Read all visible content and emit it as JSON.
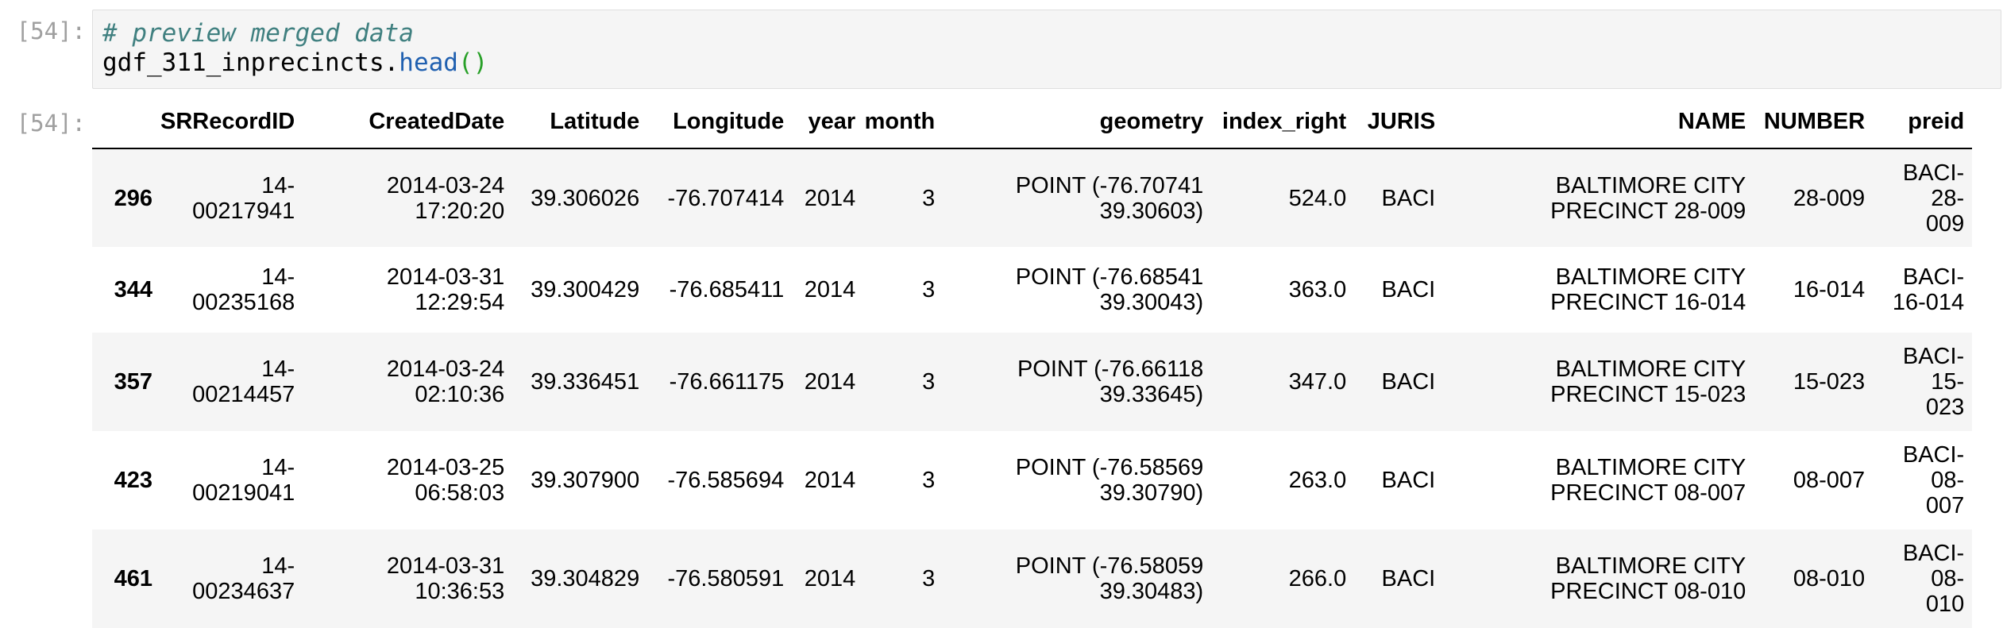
{
  "input_prompt": "[54]:",
  "output_prompt": "[54]:",
  "code": {
    "comment": "# preview merged data",
    "object": "gdf_311_inprecincts",
    "dot": ".",
    "method": "head",
    "parens": "()"
  },
  "table": {
    "columns": [
      "",
      "SRRecordID",
      "CreatedDate",
      "Latitude",
      "Longitude",
      "year",
      "month",
      "geometry",
      "index_right",
      "JURIS",
      "NAME",
      "NUMBER",
      "preid"
    ],
    "rows": [
      {
        "index": "296",
        "cells": [
          [
            "14-",
            "00217941"
          ],
          [
            "2014-03-24",
            "17:20:20"
          ],
          [
            "39.306026"
          ],
          [
            "-76.707414"
          ],
          [
            "2014"
          ],
          [
            "3"
          ],
          [
            "POINT (-76.70741",
            "39.30603)"
          ],
          [
            "524.0"
          ],
          [
            "BACI"
          ],
          [
            "BALTIMORE CITY",
            "PRECINCT 28-009"
          ],
          [
            "28-009"
          ],
          [
            "BACI-",
            "28-",
            "009"
          ]
        ]
      },
      {
        "index": "344",
        "cells": [
          [
            "14-",
            "00235168"
          ],
          [
            "2014-03-31",
            "12:29:54"
          ],
          [
            "39.300429"
          ],
          [
            "-76.685411"
          ],
          [
            "2014"
          ],
          [
            "3"
          ],
          [
            "POINT (-76.68541",
            "39.30043)"
          ],
          [
            "363.0"
          ],
          [
            "BACI"
          ],
          [
            "BALTIMORE CITY",
            "PRECINCT 16-014"
          ],
          [
            "16-014"
          ],
          [
            "BACI-",
            "16-014"
          ]
        ]
      },
      {
        "index": "357",
        "cells": [
          [
            "14-",
            "00214457"
          ],
          [
            "2014-03-24",
            "02:10:36"
          ],
          [
            "39.336451"
          ],
          [
            "-76.661175"
          ],
          [
            "2014"
          ],
          [
            "3"
          ],
          [
            "POINT (-76.66118",
            "39.33645)"
          ],
          [
            "347.0"
          ],
          [
            "BACI"
          ],
          [
            "BALTIMORE CITY",
            "PRECINCT 15-023"
          ],
          [
            "15-023"
          ],
          [
            "BACI-",
            "15-",
            "023"
          ]
        ]
      },
      {
        "index": "423",
        "cells": [
          [
            "14-",
            "00219041"
          ],
          [
            "2014-03-25",
            "06:58:03"
          ],
          [
            "39.307900"
          ],
          [
            "-76.585694"
          ],
          [
            "2014"
          ],
          [
            "3"
          ],
          [
            "POINT (-76.58569",
            "39.30790)"
          ],
          [
            "263.0"
          ],
          [
            "BACI"
          ],
          [
            "BALTIMORE CITY",
            "PRECINCT 08-007"
          ],
          [
            "08-007"
          ],
          [
            "BACI-",
            "08-",
            "007"
          ]
        ]
      },
      {
        "index": "461",
        "cells": [
          [
            "14-",
            "00234637"
          ],
          [
            "2014-03-31",
            "10:36:53"
          ],
          [
            "39.304829"
          ],
          [
            "-76.580591"
          ],
          [
            "2014"
          ],
          [
            "3"
          ],
          [
            "POINT (-76.58059",
            "39.30483)"
          ],
          [
            "266.0"
          ],
          [
            "BACI"
          ],
          [
            "BALTIMORE CITY",
            "PRECINCT 08-010"
          ],
          [
            "08-010"
          ],
          [
            "BACI-",
            "08-",
            "010"
          ]
        ]
      }
    ]
  }
}
